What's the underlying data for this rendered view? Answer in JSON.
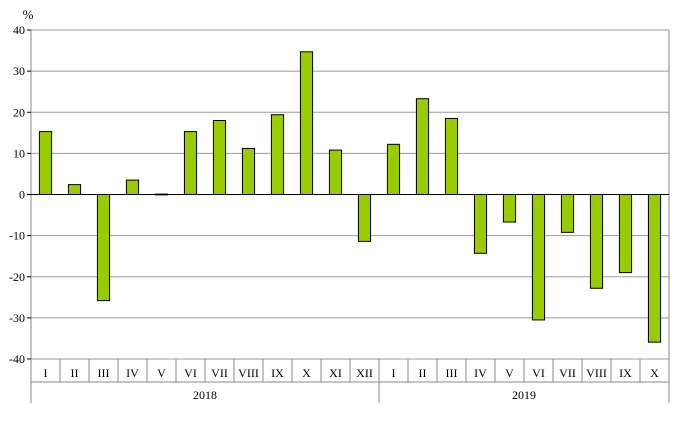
{
  "chart_data": {
    "type": "bar",
    "y_unit": "%",
    "ylim": [
      -40,
      40
    ],
    "y_ticks": [
      40,
      30,
      20,
      10,
      0,
      -10,
      -20,
      -30,
      -40
    ],
    "grid": true,
    "colors": {
      "bar": "#99CC00",
      "bar_stroke": "#000000",
      "grid": "#999999",
      "zero_line": "#000000",
      "axis": "#888888"
    },
    "groups": [
      {
        "label": "2018",
        "categories": [
          "I",
          "II",
          "III",
          "IV",
          "V",
          "VI",
          "VII",
          "VIII",
          "IX",
          "X",
          "XI",
          "XII"
        ]
      },
      {
        "label": "2019",
        "categories": [
          "I",
          "II",
          "III",
          "IV",
          "V",
          "VI",
          "VII",
          "VIII",
          "IX",
          "X"
        ]
      }
    ],
    "values": [
      15.3,
      2.4,
      -25.8,
      3.5,
      0.1,
      15.3,
      18.0,
      11.2,
      19.4,
      34.7,
      10.8,
      -11.4,
      12.2,
      23.3,
      18.5,
      -14.3,
      -6.7,
      -30.5,
      -9.2,
      -22.8,
      -19.0,
      -35.9
    ]
  }
}
